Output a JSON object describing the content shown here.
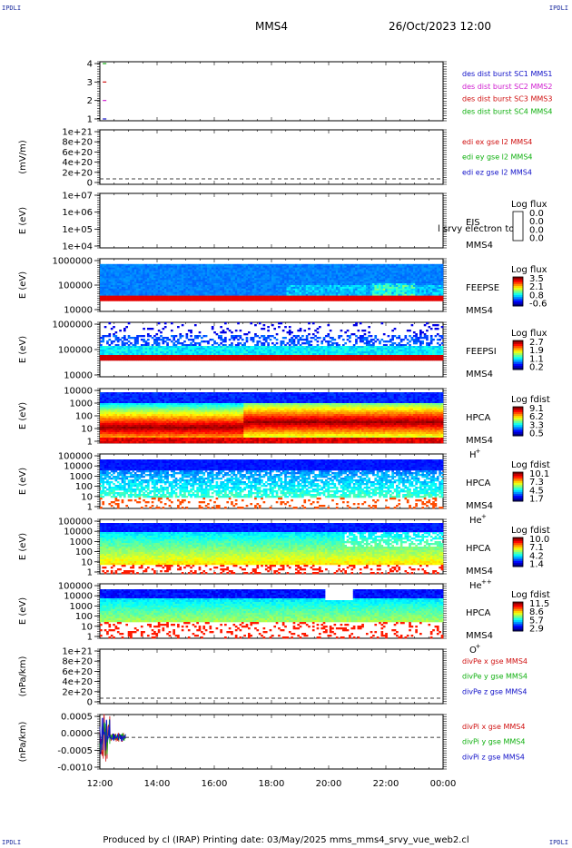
{
  "page": {
    "corner_label": "IPDLI",
    "spacecraft": "MMS4",
    "datetime": "26/Oct/2023 12:00",
    "footer": "Produced by cl (IRAP)   Printing date: 03/May/2025   mms_mms4_srvy_vue_web2.cl"
  },
  "time_axis": {
    "ticks": [
      "12:00",
      "14:00",
      "16:00",
      "18:00",
      "20:00",
      "22:00",
      "00:00"
    ],
    "range_hours": [
      12,
      24
    ]
  },
  "colors": {
    "mms1": "#1010c8",
    "mms2": "#d020d0",
    "mms3": "#d01010",
    "mms4": "#10b010",
    "x_comp": "#d01010",
    "y_comp": "#10b010",
    "z_comp": "#1010c8"
  },
  "chart_data": [
    {
      "type": "line",
      "panel": "burst",
      "ylabel": "",
      "yticks": [
        "4",
        "3",
        "2",
        "1"
      ],
      "ylim": [
        0.5,
        4.5
      ],
      "series": [
        {
          "name": "des dist burst SC1 MMS1",
          "color": "#1010c8",
          "y": 1
        },
        {
          "name": "des dist burst SC2 MMS2",
          "color": "#d020d0",
          "y": 2
        },
        {
          "name": "des dist burst SC3 MMS3",
          "color": "#d01010",
          "y": 3
        },
        {
          "name": "des dist burst SC4 MMS4",
          "color": "#10b010",
          "y": 4
        }
      ],
      "marks_x_hours": [
        12.1
      ]
    },
    {
      "type": "line",
      "panel": "edi",
      "ylabel": "(mV/m)",
      "yticks": [
        "1e+21",
        "8e+20",
        "6e+20",
        "4e+20",
        "2e+20",
        "0"
      ],
      "series": [
        {
          "name": "edi ex gse l2 MMS4",
          "color": "#d01010"
        },
        {
          "name": "edi ey gse l2 MMS4",
          "color": "#10b010"
        },
        {
          "name": "edi ez gse l2 MMS4",
          "color": "#1010c8"
        }
      ]
    },
    {
      "type": "heatmap",
      "panel": "eis",
      "ylabel": "E (eV)",
      "yticks": [
        "1e+07",
        "1e+06",
        "1e+05",
        "1e+04"
      ],
      "instrument": "EIS",
      "craft": "MMS4",
      "overlay_text": "l srvy electron to",
      "colorbar_title": "Log flux",
      "colorbar_ticks": [
        "0.0",
        "0.0",
        "0.0",
        "0.0"
      ],
      "filled": false
    },
    {
      "type": "heatmap",
      "panel": "feepse",
      "ylabel": "E (eV)",
      "yticks": [
        "1000000",
        "100000",
        "10000"
      ],
      "instrument": "FEEPSE",
      "craft": "MMS4",
      "colorbar_title": "Log flux",
      "colorbar_ticks": [
        "3.5",
        "2.1",
        "0.8",
        "-0.6"
      ]
    },
    {
      "type": "heatmap",
      "panel": "feepsi",
      "ylabel": "E (eV)",
      "yticks": [
        "1000000",
        "100000",
        "10000"
      ],
      "instrument": "FEEPSI",
      "craft": "MMS4",
      "colorbar_title": "Log flux",
      "colorbar_ticks": [
        "2.7",
        "1.9",
        "1.1",
        "0.2"
      ]
    },
    {
      "type": "heatmap",
      "panel": "hpca_h",
      "ylabel": "E (eV)",
      "yticks": [
        "10000",
        "1000",
        "100",
        "10",
        "1"
      ],
      "instrument": "HPCA",
      "craft": "MMS4",
      "species": "H",
      "species_charge": "+",
      "colorbar_title": "Log fdist",
      "colorbar_ticks": [
        "9.1",
        "6.2",
        "3.3",
        "0.5"
      ]
    },
    {
      "type": "heatmap",
      "panel": "hpca_he",
      "ylabel": "E (eV)",
      "yticks": [
        "100000",
        "10000",
        "1000",
        "100",
        "10",
        "1"
      ],
      "instrument": "HPCA",
      "craft": "MMS4",
      "species": "He",
      "species_charge": "+",
      "colorbar_title": "Log fdist",
      "colorbar_ticks": [
        "10.1",
        "7.3",
        "4.5",
        "1.7"
      ]
    },
    {
      "type": "heatmap",
      "panel": "hpca_he2",
      "ylabel": "E (eV)",
      "yticks": [
        "100000",
        "10000",
        "1000",
        "100",
        "10",
        "1"
      ],
      "instrument": "HPCA",
      "craft": "MMS4",
      "species": "He",
      "species_charge": "++",
      "colorbar_title": "Log fdist",
      "colorbar_ticks": [
        "10.0",
        "7.1",
        "4.2",
        "1.4"
      ]
    },
    {
      "type": "heatmap",
      "panel": "hpca_o",
      "ylabel": "E (eV)",
      "yticks": [
        "100000",
        "10000",
        "1000",
        "100",
        "10",
        "1"
      ],
      "instrument": "HPCA",
      "craft": "MMS4",
      "species": "O",
      "species_charge": "+",
      "colorbar_title": "Log fdist",
      "colorbar_ticks": [
        "11.5",
        "8.6",
        "5.7",
        "2.9"
      ]
    },
    {
      "type": "line",
      "panel": "divpe",
      "ylabel": "(nPa/km)",
      "yticks": [
        "1e+21",
        "8e+20",
        "6e+20",
        "4e+20",
        "2e+20",
        "0"
      ],
      "series": [
        {
          "name": "divPe x gse MMS4",
          "color": "#d01010"
        },
        {
          "name": "divPe y gse MMS4",
          "color": "#10b010"
        },
        {
          "name": "divPe z gse MMS4",
          "color": "#1010c8"
        }
      ]
    },
    {
      "type": "line",
      "panel": "divpi",
      "ylabel": "(nPa/km)",
      "yticks": [
        "0.0005",
        "0.0000",
        "-0.0005",
        "-0.0010"
      ],
      "ylim": [
        -0.00125,
        0.0009
      ],
      "series": [
        {
          "name": "divPi x gse MMS4",
          "color": "#d01010"
        },
        {
          "name": "divPi y gse MMS4",
          "color": "#10b010"
        },
        {
          "name": "divPi z gse MMS4",
          "color": "#1010c8"
        }
      ],
      "data_span_hours": [
        12.0,
        12.9
      ]
    }
  ]
}
